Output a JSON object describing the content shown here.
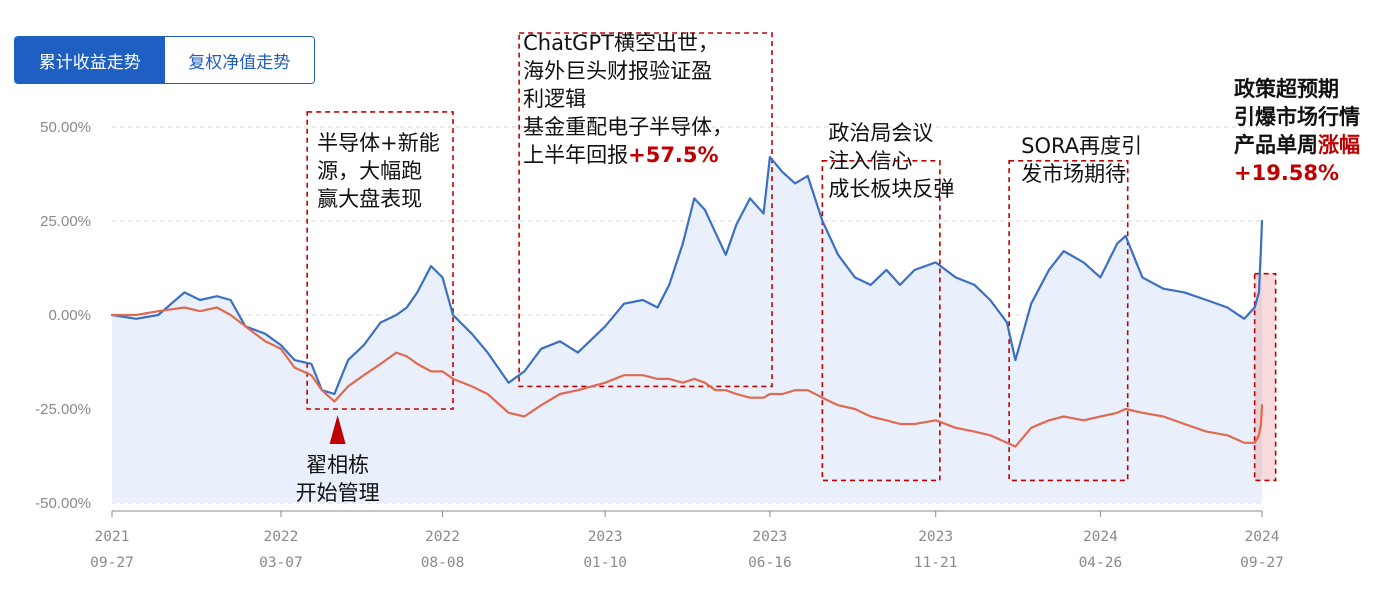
{
  "tabs": [
    {
      "label": "累计收益走势",
      "active": true
    },
    {
      "label": "复权净值走势",
      "active": false
    }
  ],
  "chart_data": {
    "type": "line",
    "ylim": [
      -50,
      50
    ],
    "y_ticks": [
      "50.00%",
      "25.00%",
      "0.00%",
      "-25.00%",
      "-50.00%"
    ],
    "y_tick_values": [
      50,
      25,
      0,
      -25,
      -50
    ],
    "x_ticks": [
      {
        "date": "2021-09-27",
        "year": "2021",
        "md": "09-27"
      },
      {
        "date": "2022-03-07",
        "year": "2022",
        "md": "03-07"
      },
      {
        "date": "2022-08-08",
        "year": "2022",
        "md": "08-08"
      },
      {
        "date": "2023-01-10",
        "year": "2023",
        "md": "01-10"
      },
      {
        "date": "2023-06-16",
        "year": "2023",
        "md": "06-16"
      },
      {
        "date": "2023-11-21",
        "year": "2023",
        "md": "11-21"
      },
      {
        "date": "2024-04-26",
        "year": "2024",
        "md": "04-26"
      },
      {
        "date": "2024-09-27",
        "year": "2024",
        "md": "09-27"
      }
    ],
    "grid": true,
    "legend": "none",
    "series": [
      {
        "color": "#3a6fc4",
        "fill": "#e9f0fb",
        "points": [
          [
            "2021-09-27",
            0
          ],
          [
            "2021-10-20",
            -1
          ],
          [
            "2021-11-10",
            0
          ],
          [
            "2021-12-05",
            6
          ],
          [
            "2021-12-20",
            4
          ],
          [
            "2022-01-05",
            5
          ],
          [
            "2022-01-18",
            4
          ],
          [
            "2022-02-01",
            -3
          ],
          [
            "2022-02-20",
            -5
          ],
          [
            "2022-03-07",
            -8
          ],
          [
            "2022-03-20",
            -12
          ],
          [
            "2022-04-05",
            -13
          ],
          [
            "2022-04-15",
            -20
          ],
          [
            "2022-04-27",
            -21
          ],
          [
            "2022-05-10",
            -12
          ],
          [
            "2022-05-25",
            -8
          ],
          [
            "2022-06-10",
            -2
          ],
          [
            "2022-06-25",
            0
          ],
          [
            "2022-07-05",
            2
          ],
          [
            "2022-07-15",
            6
          ],
          [
            "2022-07-28",
            13
          ],
          [
            "2022-08-08",
            10
          ],
          [
            "2022-08-18",
            0
          ],
          [
            "2022-09-05",
            -5
          ],
          [
            "2022-09-20",
            -10
          ],
          [
            "2022-10-10",
            -18
          ],
          [
            "2022-10-25",
            -15
          ],
          [
            "2022-11-10",
            -9
          ],
          [
            "2022-11-28",
            -7
          ],
          [
            "2022-12-15",
            -10
          ],
          [
            "2023-01-10",
            -3
          ],
          [
            "2023-01-28",
            3
          ],
          [
            "2023-02-15",
            4
          ],
          [
            "2023-03-01",
            2
          ],
          [
            "2023-03-12",
            8
          ],
          [
            "2023-03-25",
            19
          ],
          [
            "2023-04-05",
            31
          ],
          [
            "2023-04-15",
            28
          ],
          [
            "2023-04-25",
            22
          ],
          [
            "2023-05-05",
            16
          ],
          [
            "2023-05-15",
            24
          ],
          [
            "2023-05-28",
            31
          ],
          [
            "2023-06-10",
            27
          ],
          [
            "2023-06-16",
            42
          ],
          [
            "2023-06-28",
            38
          ],
          [
            "2023-07-10",
            35
          ],
          [
            "2023-07-22",
            37
          ],
          [
            "2023-08-05",
            25
          ],
          [
            "2023-08-20",
            16
          ],
          [
            "2023-09-05",
            10
          ],
          [
            "2023-09-20",
            8
          ],
          [
            "2023-10-05",
            12
          ],
          [
            "2023-10-18",
            8
          ],
          [
            "2023-11-01",
            12
          ],
          [
            "2023-11-21",
            14
          ],
          [
            "2023-12-10",
            10
          ],
          [
            "2023-12-28",
            8
          ],
          [
            "2024-01-12",
            4
          ],
          [
            "2024-01-28",
            -2
          ],
          [
            "2024-02-05",
            -12
          ],
          [
            "2024-02-20",
            3
          ],
          [
            "2024-03-08",
            12
          ],
          [
            "2024-03-22",
            17
          ],
          [
            "2024-04-10",
            14
          ],
          [
            "2024-04-26",
            10
          ],
          [
            "2024-05-12",
            19
          ],
          [
            "2024-05-20",
            21
          ],
          [
            "2024-06-05",
            10
          ],
          [
            "2024-06-25",
            7
          ],
          [
            "2024-07-15",
            6
          ],
          [
            "2024-08-05",
            4
          ],
          [
            "2024-08-25",
            2
          ],
          [
            "2024-09-10",
            -1
          ],
          [
            "2024-09-20",
            2
          ],
          [
            "2024-09-24",
            6
          ],
          [
            "2024-09-26",
            18
          ],
          [
            "2024-09-27",
            25
          ]
        ]
      },
      {
        "color": "#e06a50",
        "fill": "none",
        "points": [
          [
            "2021-09-27",
            0
          ],
          [
            "2021-10-20",
            0
          ],
          [
            "2021-11-10",
            1
          ],
          [
            "2021-12-05",
            2
          ],
          [
            "2021-12-20",
            1
          ],
          [
            "2022-01-05",
            2
          ],
          [
            "2022-01-18",
            0
          ],
          [
            "2022-02-01",
            -3
          ],
          [
            "2022-02-20",
            -7
          ],
          [
            "2022-03-07",
            -9
          ],
          [
            "2022-03-20",
            -14
          ],
          [
            "2022-04-05",
            -16
          ],
          [
            "2022-04-15",
            -20
          ],
          [
            "2022-04-27",
            -23
          ],
          [
            "2022-05-10",
            -19
          ],
          [
            "2022-05-25",
            -16
          ],
          [
            "2022-06-10",
            -13
          ],
          [
            "2022-06-25",
            -10
          ],
          [
            "2022-07-05",
            -11
          ],
          [
            "2022-07-15",
            -13
          ],
          [
            "2022-07-28",
            -15
          ],
          [
            "2022-08-08",
            -15
          ],
          [
            "2022-08-18",
            -17
          ],
          [
            "2022-09-05",
            -19
          ],
          [
            "2022-09-20",
            -21
          ],
          [
            "2022-10-10",
            -26
          ],
          [
            "2022-10-25",
            -27
          ],
          [
            "2022-11-10",
            -24
          ],
          [
            "2022-11-28",
            -21
          ],
          [
            "2022-12-15",
            -20
          ],
          [
            "2023-01-10",
            -18
          ],
          [
            "2023-01-28",
            -16
          ],
          [
            "2023-02-15",
            -16
          ],
          [
            "2023-03-01",
            -17
          ],
          [
            "2023-03-12",
            -17
          ],
          [
            "2023-03-25",
            -18
          ],
          [
            "2023-04-05",
            -17
          ],
          [
            "2023-04-15",
            -18
          ],
          [
            "2023-04-25",
            -20
          ],
          [
            "2023-05-05",
            -20
          ],
          [
            "2023-05-15",
            -21
          ],
          [
            "2023-05-28",
            -22
          ],
          [
            "2023-06-10",
            -22
          ],
          [
            "2023-06-16",
            -21
          ],
          [
            "2023-06-28",
            -21
          ],
          [
            "2023-07-10",
            -20
          ],
          [
            "2023-07-22",
            -20
          ],
          [
            "2023-08-05",
            -22
          ],
          [
            "2023-08-20",
            -24
          ],
          [
            "2023-09-05",
            -25
          ],
          [
            "2023-09-20",
            -27
          ],
          [
            "2023-10-05",
            -28
          ],
          [
            "2023-10-18",
            -29
          ],
          [
            "2023-11-01",
            -29
          ],
          [
            "2023-11-21",
            -28
          ],
          [
            "2023-12-10",
            -30
          ],
          [
            "2023-12-28",
            -31
          ],
          [
            "2024-01-12",
            -32
          ],
          [
            "2024-01-28",
            -34
          ],
          [
            "2024-02-05",
            -35
          ],
          [
            "2024-02-20",
            -30
          ],
          [
            "2024-03-08",
            -28
          ],
          [
            "2024-03-22",
            -27
          ],
          [
            "2024-04-10",
            -28
          ],
          [
            "2024-04-26",
            -27
          ],
          [
            "2024-05-12",
            -26
          ],
          [
            "2024-05-20",
            -25
          ],
          [
            "2024-06-05",
            -26
          ],
          [
            "2024-06-25",
            -27
          ],
          [
            "2024-07-15",
            -29
          ],
          [
            "2024-08-05",
            -31
          ],
          [
            "2024-08-25",
            -32
          ],
          [
            "2024-09-10",
            -34
          ],
          [
            "2024-09-20",
            -34
          ],
          [
            "2024-09-24",
            -32
          ],
          [
            "2024-09-26",
            -29
          ],
          [
            "2024-09-27",
            -24
          ]
        ]
      }
    ],
    "annotations": [
      {
        "from": "2022-04-01",
        "to": "2022-08-18",
        "y_top": 54,
        "y_bottom": -25,
        "lines": [
          [
            "半导体+新能"
          ],
          [
            "源，大幅跑"
          ],
          [
            "赢大盘表现"
          ]
        ]
      },
      {
        "from": "2022-10-20",
        "to": "2023-06-18",
        "y_top": 75,
        "y_bottom": -19,
        "lines": [
          [
            "ChatGPT横空出世，"
          ],
          [
            "海外巨头财报验证盈"
          ],
          [
            "利逻辑"
          ],
          [
            "基金重配电子半导体，"
          ],
          [
            "上半年回报",
            {
              "t": "+57.5%",
              "red": true
            }
          ]
        ]
      },
      {
        "from": "2023-08-05",
        "to": "2023-11-25",
        "y_top": 41,
        "y_bottom": -44,
        "lines": [
          [
            "政治局会议"
          ],
          [
            "注入信心"
          ],
          [
            "成长板块反弹"
          ]
        ]
      },
      {
        "from": "2024-01-30",
        "to": "2024-05-22",
        "y_top": 41,
        "y_bottom": -44,
        "lines": [
          [
            "SORA再度引"
          ],
          [
            "发市场期待"
          ]
        ]
      },
      {
        "from": "2024-09-20",
        "to": "2024-10-10",
        "y_top": 11,
        "y_bottom": -44,
        "filled": true,
        "lines": [
          [
            {
              "t": "政策超预期",
              "bold": true
            }
          ],
          [
            {
              "t": "引爆市场行情",
              "bold": true
            }
          ],
          [
            {
              "t": "产品单周",
              "bold": true
            },
            {
              "t": "涨幅",
              "red": true
            }
          ],
          [
            {
              "t": "+19.58%",
              "red": true
            }
          ]
        ]
      }
    ],
    "marker": {
      "date": "2022-04-30",
      "lines": [
        "翟相栋",
        "开始管理"
      ]
    }
  }
}
